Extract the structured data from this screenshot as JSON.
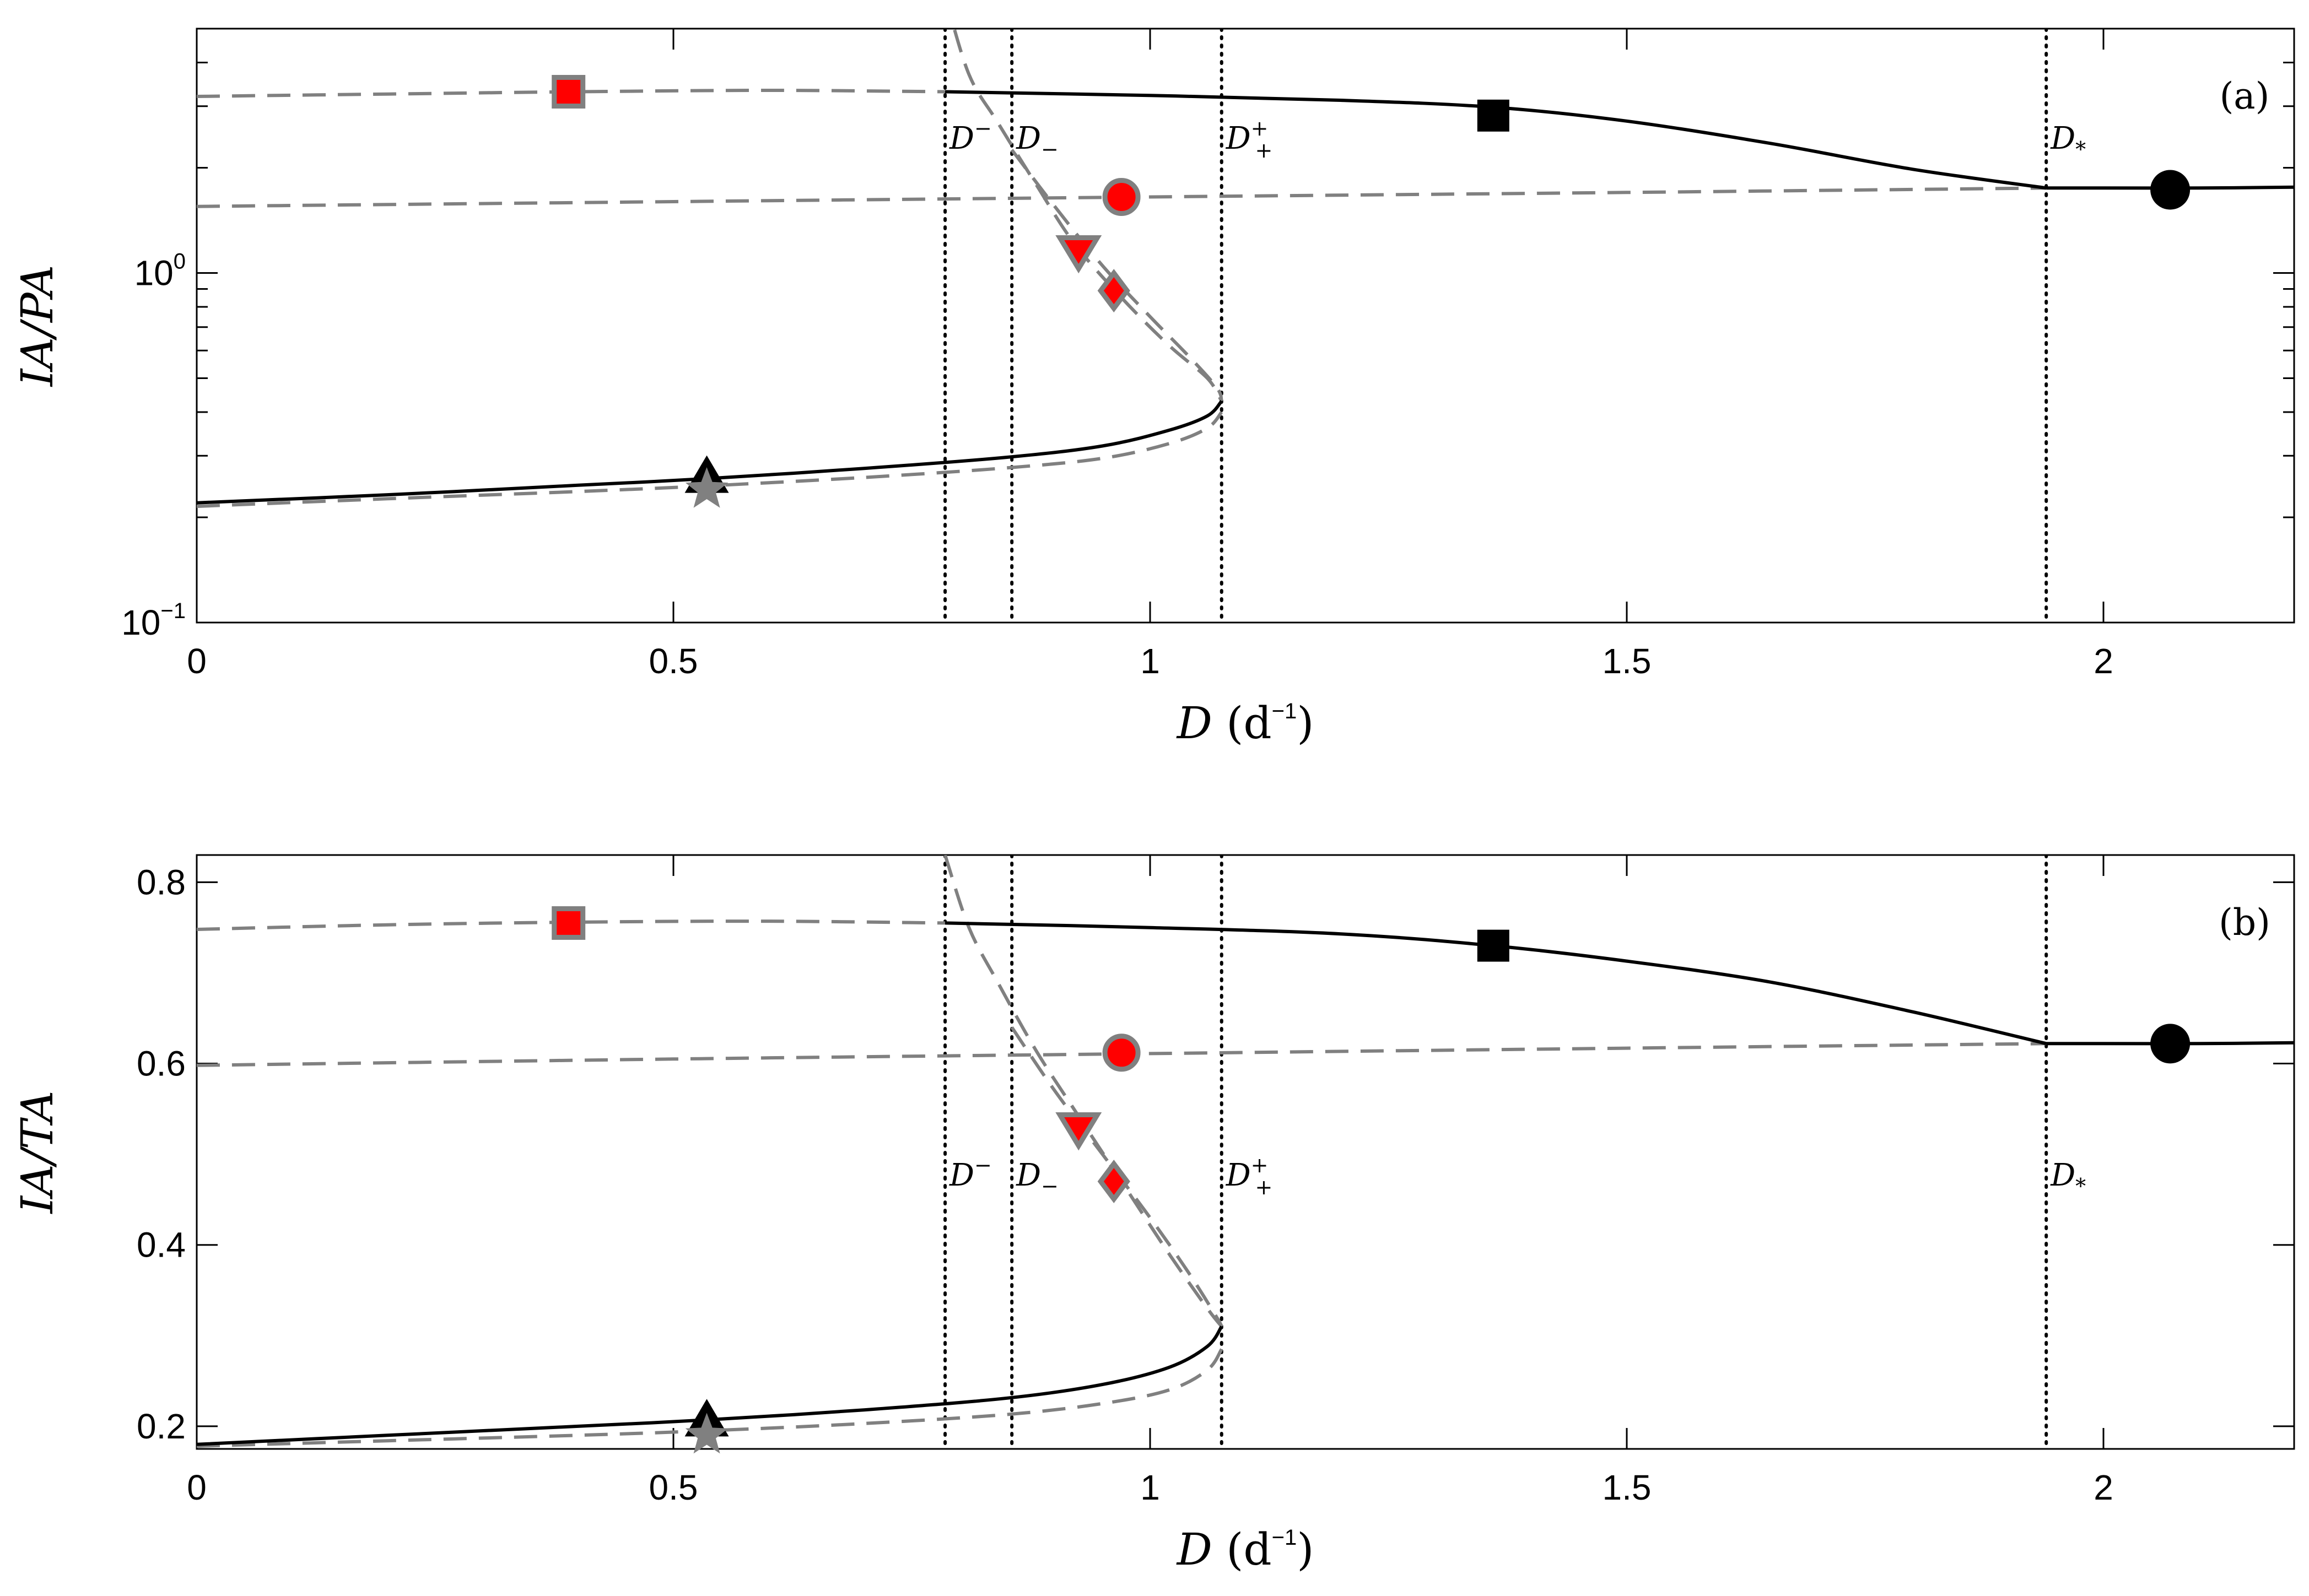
{
  "chart_data": [
    {
      "type": "line",
      "panel_label": "(a)",
      "xlabel": "D",
      "xlabel_unit": "(d",
      "xlabel_unit_exp": "−1",
      "xlabel_close": ")",
      "ylabel": "IA/PA",
      "xlim": [
        0,
        2.2
      ],
      "ylim": [
        0.1,
        5
      ],
      "yscale": "log",
      "x_ticks": [
        0,
        0.5,
        1,
        1.5,
        2
      ],
      "x_tick_labels": [
        "0",
        "0.5",
        "1",
        "1.5",
        "2"
      ],
      "y_ticks": [
        {
          "value": 0.1,
          "base": "10",
          "exp": "−1"
        },
        {
          "value": 1,
          "base": "10",
          "exp": "0"
        }
      ],
      "vlines": [
        {
          "x": 0.785,
          "base": "D",
          "sup": "−",
          "sub": ""
        },
        {
          "x": 0.855,
          "base": "D",
          "sup": "",
          "sub": "−"
        },
        {
          "x": 1.075,
          "base": "D",
          "sup": "+",
          "sub": "+"
        },
        {
          "x": 1.94,
          "base": "D",
          "sup": "",
          "sub": "*"
        }
      ],
      "series": [
        {
          "style": "solid",
          "x": [
            0.785,
            1.0,
            1.2,
            1.36,
            1.5,
            1.65,
            1.8,
            1.94
          ],
          "y": [
            3.3,
            3.22,
            3.12,
            2.98,
            2.72,
            2.35,
            1.98,
            1.75
          ]
        },
        {
          "style": "solid",
          "x": [
            1.94,
            2.0,
            2.1,
            2.2
          ],
          "y": [
            1.75,
            1.75,
            1.75,
            1.76
          ]
        },
        {
          "style": "solid",
          "x": [
            0,
            0.2,
            0.4,
            0.535,
            0.7,
            0.85,
            0.95,
            1.02,
            1.06,
            1.075
          ],
          "y": [
            0.22,
            0.232,
            0.247,
            0.258,
            0.276,
            0.297,
            0.32,
            0.355,
            0.39,
            0.43
          ]
        },
        {
          "style": "dashed",
          "x": [
            0,
            0.2,
            0.4,
            0.6,
            0.785
          ],
          "y": [
            3.2,
            3.25,
            3.3,
            3.33,
            3.3
          ]
        },
        {
          "style": "dashed",
          "x": [
            0,
            0.5,
            1.0,
            1.5,
            1.94
          ],
          "y": [
            1.55,
            1.6,
            1.65,
            1.7,
            1.75
          ]
        },
        {
          "style": "dashed",
          "x": [
            0.785,
            0.81,
            0.84,
            0.88,
            0.92,
            0.97,
            1.02,
            1.06,
            1.075
          ],
          "y": [
            6.2,
            3.7,
            2.7,
            1.8,
            1.22,
            0.85,
            0.62,
            0.5,
            0.43
          ]
        },
        {
          "style": "dashed",
          "x": [
            0.855,
            0.9,
            0.95,
            1.0,
            1.04,
            1.07,
            1.075
          ],
          "y": [
            2.25,
            1.55,
            1.05,
            0.75,
            0.58,
            0.47,
            0.43
          ]
        },
        {
          "style": "dashed",
          "x": [
            0,
            0.2,
            0.4,
            0.535,
            0.7,
            0.85,
            0.95,
            1.02,
            1.06,
            1.075
          ],
          "y": [
            0.215,
            0.226,
            0.237,
            0.246,
            0.26,
            0.277,
            0.295,
            0.325,
            0.36,
            0.4
          ]
        }
      ],
      "markers": [
        {
          "shape": "square",
          "fill": "#ff0000",
          "edge": "#808080",
          "x": 0.39,
          "y": 3.3
        },
        {
          "shape": "square",
          "fill": "#000000",
          "edge": "#000000",
          "x": 1.36,
          "y": 2.82
        },
        {
          "shape": "circle",
          "fill": "#ff0000",
          "edge": "#808080",
          "x": 0.97,
          "y": 1.65
        },
        {
          "shape": "circle",
          "fill": "#000000",
          "edge": "#000000",
          "x": 2.07,
          "y": 1.73
        },
        {
          "shape": "triangle-down",
          "fill": "#ff0000",
          "edge": "#808080",
          "x": 0.925,
          "y": 1.15
        },
        {
          "shape": "diamond",
          "fill": "#ff0000",
          "edge": "#808080",
          "x": 0.962,
          "y": 0.89
        },
        {
          "shape": "triangle-up",
          "fill": "#000000",
          "edge": "#000000",
          "x": 0.535,
          "y": 0.262
        },
        {
          "shape": "star",
          "fill": "#808080",
          "edge": "#808080",
          "x": 0.535,
          "y": 0.24
        }
      ]
    },
    {
      "type": "line",
      "panel_label": "(b)",
      "xlabel": "D",
      "xlabel_unit": "(d",
      "xlabel_unit_exp": "−1",
      "xlabel_close": ")",
      "ylabel": "IA/TA",
      "xlim": [
        0,
        2.2
      ],
      "ylim": [
        0.175,
        0.83
      ],
      "yscale": "linear",
      "x_ticks": [
        0,
        0.5,
        1,
        1.5,
        2
      ],
      "x_tick_labels": [
        "0",
        "0.5",
        "1",
        "1.5",
        "2"
      ],
      "y_ticks": [
        {
          "value": 0.2,
          "label": "0.2"
        },
        {
          "value": 0.4,
          "label": "0.4"
        },
        {
          "value": 0.6,
          "label": "0.6"
        },
        {
          "value": 0.8,
          "label": "0.8"
        }
      ],
      "vlines": [
        {
          "x": 0.785,
          "base": "D",
          "sup": "−",
          "sub": ""
        },
        {
          "x": 0.855,
          "base": "D",
          "sup": "",
          "sub": "−"
        },
        {
          "x": 1.075,
          "base": "D",
          "sup": "+",
          "sub": "+"
        },
        {
          "x": 1.94,
          "base": "D",
          "sup": "",
          "sub": "*"
        }
      ],
      "series": [
        {
          "style": "solid",
          "x": [
            0.785,
            1.0,
            1.2,
            1.36,
            1.5,
            1.65,
            1.8,
            1.94
          ],
          "y": [
            0.755,
            0.75,
            0.743,
            0.73,
            0.713,
            0.69,
            0.657,
            0.622
          ]
        },
        {
          "style": "solid",
          "x": [
            1.94,
            2.0,
            2.1,
            2.2
          ],
          "y": [
            0.622,
            0.622,
            0.622,
            0.623
          ]
        },
        {
          "style": "solid",
          "x": [
            0,
            0.2,
            0.4,
            0.535,
            0.7,
            0.85,
            0.95,
            1.02,
            1.06,
            1.075
          ],
          "y": [
            0.18,
            0.19,
            0.2,
            0.207,
            0.218,
            0.231,
            0.246,
            0.265,
            0.288,
            0.31
          ]
        },
        {
          "style": "dashed",
          "x": [
            0,
            0.2,
            0.4,
            0.6,
            0.785
          ],
          "y": [
            0.748,
            0.753,
            0.756,
            0.757,
            0.755
          ]
        },
        {
          "style": "dashed",
          "x": [
            0,
            0.5,
            1.0,
            1.5,
            1.94
          ],
          "y": [
            0.598,
            0.605,
            0.611,
            0.617,
            0.622
          ]
        },
        {
          "style": "dashed",
          "x": [
            0.785,
            0.81,
            0.84,
            0.88,
            0.92,
            0.97,
            1.02,
            1.06,
            1.075
          ],
          "y": [
            0.83,
            0.75,
            0.69,
            0.615,
            0.55,
            0.47,
            0.39,
            0.33,
            0.31
          ]
        },
        {
          "style": "dashed",
          "x": [
            0.855,
            0.9,
            0.95,
            1.0,
            1.04,
            1.07,
            1.075
          ],
          "y": [
            0.64,
            0.57,
            0.5,
            0.43,
            0.37,
            0.32,
            0.31
          ]
        },
        {
          "style": "dashed",
          "x": [
            0,
            0.2,
            0.4,
            0.535,
            0.7,
            0.85,
            0.95,
            1.02,
            1.06,
            1.075
          ],
          "y": [
            0.178,
            0.184,
            0.19,
            0.195,
            0.203,
            0.213,
            0.225,
            0.24,
            0.262,
            0.285
          ]
        }
      ],
      "markers": [
        {
          "shape": "square",
          "fill": "#ff0000",
          "edge": "#808080",
          "x": 0.39,
          "y": 0.755
        },
        {
          "shape": "square",
          "fill": "#000000",
          "edge": "#000000",
          "x": 1.36,
          "y": 0.73
        },
        {
          "shape": "circle",
          "fill": "#ff0000",
          "edge": "#808080",
          "x": 0.97,
          "y": 0.612
        },
        {
          "shape": "circle",
          "fill": "#000000",
          "edge": "#000000",
          "x": 2.07,
          "y": 0.622
        },
        {
          "shape": "triangle-down",
          "fill": "#ff0000",
          "edge": "#808080",
          "x": 0.925,
          "y": 0.528
        },
        {
          "shape": "diamond",
          "fill": "#ff0000",
          "edge": "#808080",
          "x": 0.962,
          "y": 0.47
        },
        {
          "shape": "triangle-up",
          "fill": "#000000",
          "edge": "#000000",
          "x": 0.535,
          "y": 0.207
        },
        {
          "shape": "star",
          "fill": "#808080",
          "edge": "#808080",
          "x": 0.535,
          "y": 0.19
        }
      ]
    }
  ]
}
